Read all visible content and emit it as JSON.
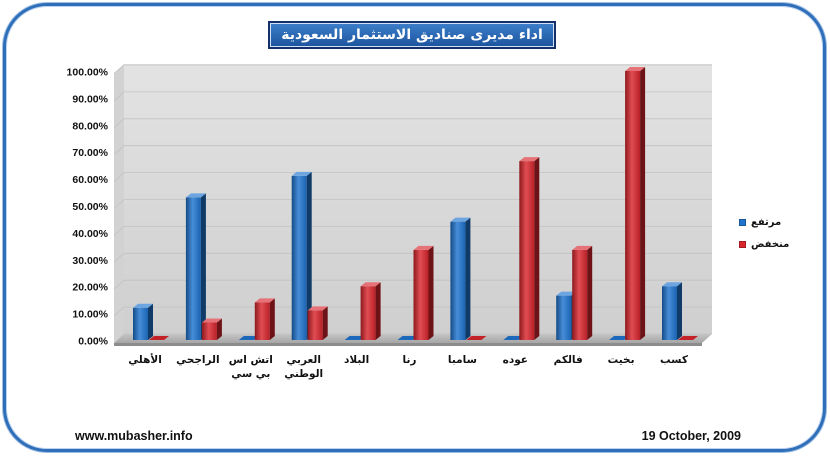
{
  "chart_data": {
    "type": "bar",
    "title": "اداء مديرى صناديق الاستثمار السعودية",
    "categories": [
      "الأهلي",
      "الراجحي",
      "اتش اس بي سي",
      "العربي الوطني",
      "البلاد",
      "رنا",
      "سامبا",
      "عوده",
      "فالكم",
      "بخيت",
      "كسب"
    ],
    "series": [
      {
        "name": "مرتفع",
        "color": "#1f74d0",
        "values": [
          12,
          53,
          0,
          61,
          0,
          0,
          44,
          0,
          16.5,
          0,
          20
        ]
      },
      {
        "name": "منخفض",
        "color": "#d9262d",
        "values": [
          0,
          6.5,
          14,
          11,
          20,
          33.5,
          0,
          66.5,
          33.5,
          100,
          0
        ]
      }
    ],
    "ylim": [
      0,
      100
    ],
    "yticks": [
      "0.00%",
      "10.00%",
      "20.00%",
      "30.00%",
      "40.00%",
      "50.00%",
      "60.00%",
      "70.00%",
      "80.00%",
      "90.00%",
      "100.00%"
    ],
    "grid": true,
    "legend_position": "right",
    "three_d": true
  },
  "footer": {
    "website": "www.mubasher.info",
    "date": "19 October, 2009"
  }
}
